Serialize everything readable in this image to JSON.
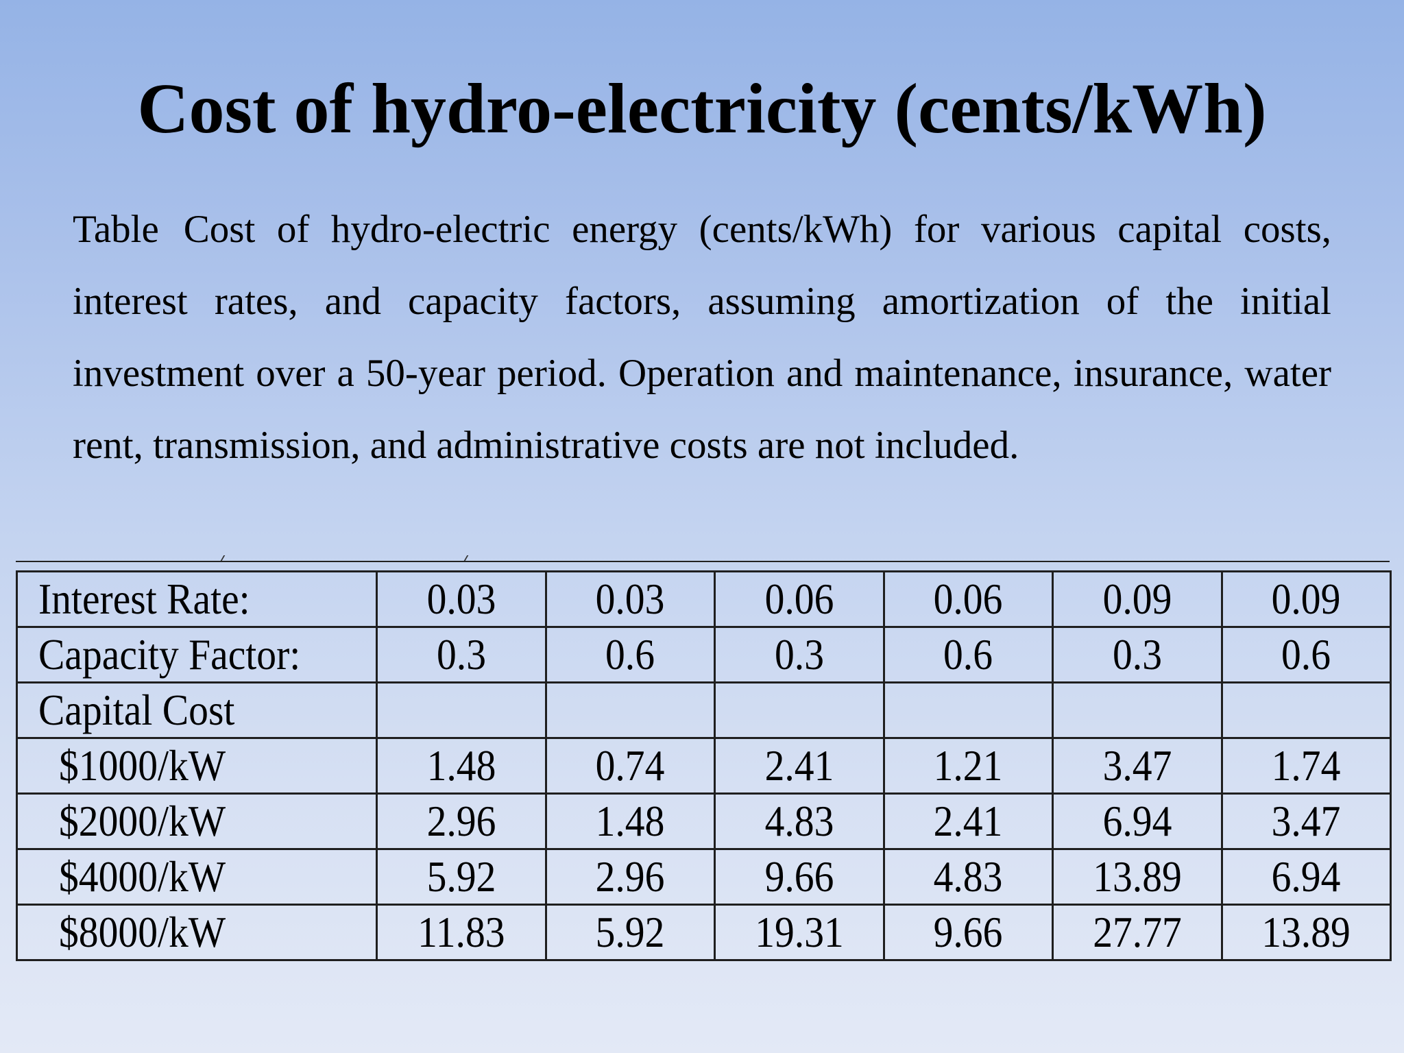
{
  "title": "Cost of hydro-electricity (cents/kWh)",
  "caption": {
    "label": "Table",
    "text": "Cost of hydro-electric energy (cents/kWh) for various capital costs, interest rates, and capacity factors, assuming amortization of the initial investment over a 50-year period.  Operation and maintenance, insurance, water rent, transmission, and administrative costs are not included."
  },
  "table": {
    "header_rows": [
      {
        "label": "Interest Rate:",
        "values": [
          "0.03",
          "0.03",
          "0.06",
          "0.06",
          "0.09",
          "0.09"
        ]
      },
      {
        "label": "Capacity Factor:",
        "values": [
          "0.3",
          "0.6",
          "0.3",
          "0.6",
          "0.3",
          "0.6"
        ]
      }
    ],
    "section_label": "Capital Cost",
    "data_rows": [
      {
        "label": "$1000/kW",
        "values": [
          "1.48",
          "0.74",
          "2.41",
          "1.21",
          "3.47",
          "1.74"
        ]
      },
      {
        "label": "$2000/kW",
        "values": [
          "2.96",
          "1.48",
          "4.83",
          "2.41",
          "6.94",
          "3.47"
        ]
      },
      {
        "label": "$4000/kW",
        "values": [
          "5.92",
          "2.96",
          "9.66",
          "4.83",
          "13.89",
          "6.94"
        ]
      },
      {
        "label": "$8000/kW",
        "values": [
          "11.83",
          "5.92",
          "19.31",
          "9.66",
          "27.77",
          "13.89"
        ]
      }
    ]
  }
}
